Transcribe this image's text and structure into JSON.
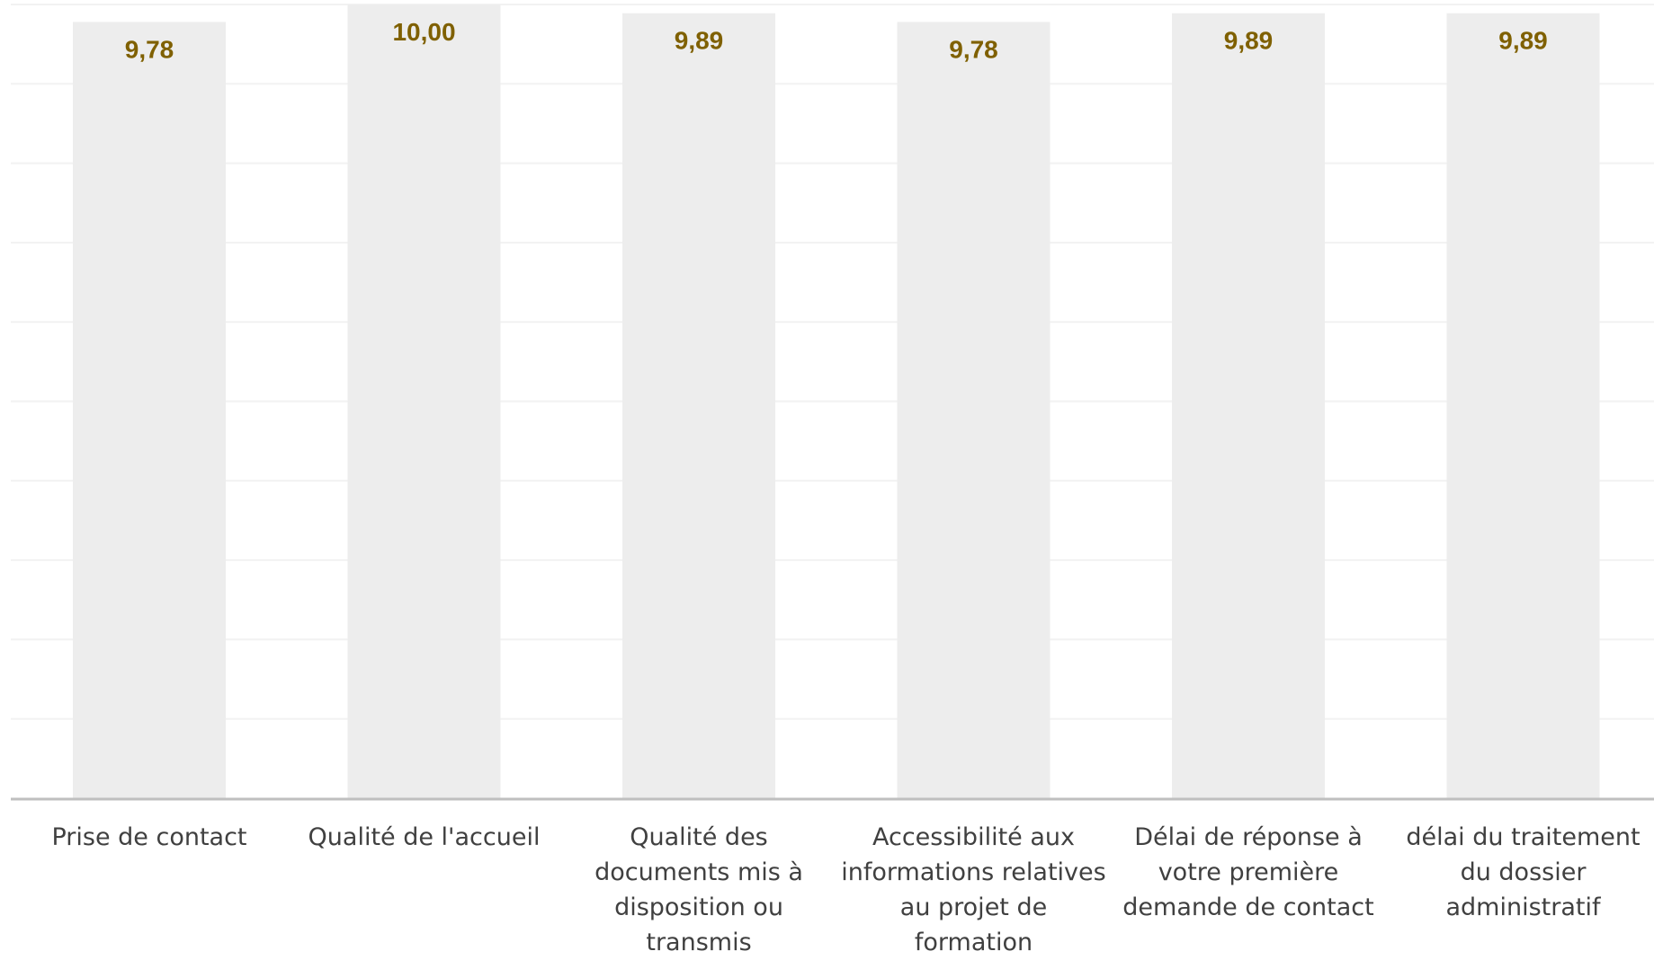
{
  "chart_data": {
    "type": "bar",
    "categories": [
      "Prise de contact",
      "Qualité de l'accueil",
      "Qualité des documents mis à disposition ou transmis",
      "Accessibilité aux informations relatives au projet de formation",
      "Délai de réponse à votre première demande de contact",
      "délai du traitement du dossier administratif"
    ],
    "category_lines": [
      [
        "Prise de contact"
      ],
      [
        "Qualité de l'accueil"
      ],
      [
        "Qualité des",
        "documents mis à",
        "disposition ou",
        "transmis"
      ],
      [
        "Accessibilité aux",
        "informations relatives",
        "au projet de",
        "formation"
      ],
      [
        "Délai de réponse à",
        "votre première",
        "demande de contact"
      ],
      [
        "délai du traitement",
        "du dossier",
        "administratif"
      ]
    ],
    "values": [
      9.78,
      10.0,
      9.89,
      9.78,
      9.89,
      9.89
    ],
    "data_labels": [
      "9,78",
      "10,00",
      "9,89",
      "9,78",
      "9,89",
      "9,89"
    ],
    "title": "",
    "xlabel": "",
    "ylabel": "",
    "ylim": [
      0,
      10
    ],
    "grid": true,
    "legend": "none",
    "colors": {
      "bar": "#ededed",
      "data_label": "#7f6000",
      "gridline": "#f2f2f2",
      "axis": "#bfbfbf",
      "category_text": "#404040"
    }
  }
}
